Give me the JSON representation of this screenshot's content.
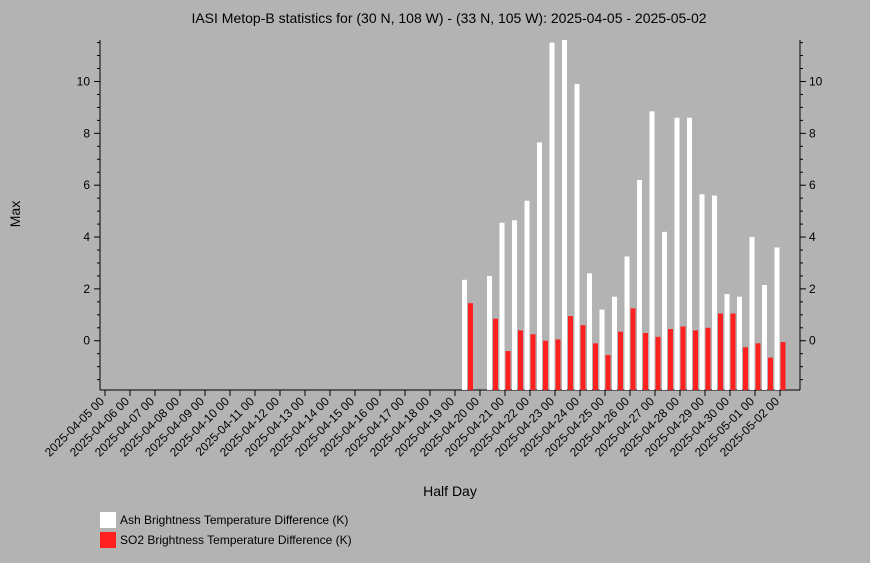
{
  "chart_data": {
    "type": "bar",
    "title": "IASI Metop-B statistics for (30 N, 108 W) - (33 N, 105 W): 2025-04-05 - 2025-05-02",
    "xlabel": "Half Day",
    "ylabel": "Max",
    "ylim": [
      -1.9,
      11.6
    ],
    "yticks": [
      0,
      2,
      4,
      6,
      8,
      10
    ],
    "x_tick_labels": [
      "2025-04-05 00",
      "2025-04-06 00",
      "2025-04-07 00",
      "2025-04-08 00",
      "2025-04-09 00",
      "2025-04-10 00",
      "2025-04-11 00",
      "2025-04-12 00",
      "2025-04-13 00",
      "2025-04-14 00",
      "2025-04-15 00",
      "2025-04-16 00",
      "2025-04-17 00",
      "2025-04-18 00",
      "2025-04-19 00",
      "2025-04-20 00",
      "2025-04-21 00",
      "2025-04-22 00",
      "2025-04-23 00",
      "2025-04-24 00",
      "2025-04-25 00",
      "2025-04-26 00",
      "2025-04-27 00",
      "2025-04-28 00",
      "2025-04-29 00",
      "2025-04-30 00",
      "2025-05-01 00",
      "2025-05-02 00"
    ],
    "categories": [
      "2025-04-19 12",
      "2025-04-20 00",
      "2025-04-20 12",
      "2025-04-21 00",
      "2025-04-21 12",
      "2025-04-22 00",
      "2025-04-22 12",
      "2025-04-23 00",
      "2025-04-23 12",
      "2025-04-24 00",
      "2025-04-24 12",
      "2025-04-25 00",
      "2025-04-25 12",
      "2025-04-26 00",
      "2025-04-26 12",
      "2025-04-27 00",
      "2025-04-27 12",
      "2025-04-28 00",
      "2025-04-28 12",
      "2025-04-29 00",
      "2025-04-29 12",
      "2025-04-30 00",
      "2025-04-30 12",
      "2025-05-01 00",
      "2025-05-01 12",
      "2025-05-02 00"
    ],
    "series": [
      {
        "name": "Ash Brightness Temperature Difference (K)",
        "color": "#ffffff",
        "values": [
          2.35,
          null,
          2.5,
          4.55,
          4.65,
          5.4,
          7.65,
          11.5,
          11.6,
          9.9,
          2.6,
          1.2,
          1.7,
          3.25,
          6.2,
          8.85,
          4.2,
          8.6,
          8.6,
          5.65,
          5.6,
          1.8,
          1.7,
          4.0,
          2.15,
          3.6
        ]
      },
      {
        "name": "SO2 Brightness Temperature Difference (K)",
        "color": "#ff2020",
        "values": [
          1.45,
          null,
          0.85,
          -0.4,
          0.4,
          0.25,
          0.0,
          0.05,
          0.95,
          0.6,
          -0.1,
          -0.55,
          0.35,
          1.25,
          0.3,
          0.15,
          0.45,
          0.55,
          0.4,
          0.5,
          1.05,
          1.05,
          -0.25,
          -0.1,
          -0.65,
          -0.05
        ]
      }
    ],
    "legend_position": "bottom-left",
    "grid": false
  }
}
